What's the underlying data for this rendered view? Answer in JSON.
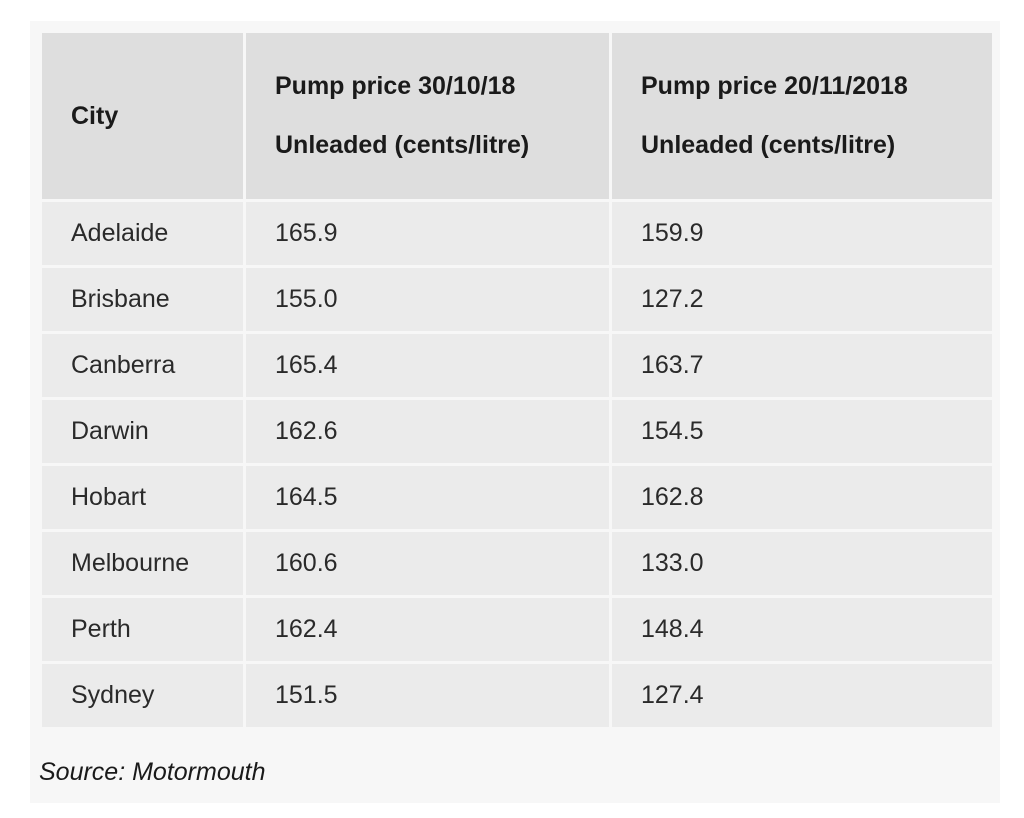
{
  "table": {
    "headers": [
      [
        "City"
      ],
      [
        "Pump price 30/10/18",
        "Unleaded (cents/litre)"
      ],
      [
        "Pump price 20/11/2018",
        "Unleaded (cents/litre)"
      ]
    ],
    "rows": [
      [
        "Adelaide",
        "165.9",
        "159.9"
      ],
      [
        "Brisbane",
        "155.0",
        "127.2"
      ],
      [
        "Canberra",
        "165.4",
        "163.7"
      ],
      [
        "Darwin",
        "162.6",
        "154.5"
      ],
      [
        "Hobart",
        "164.5",
        "162.8"
      ],
      [
        "Melbourne",
        "160.6",
        "133.0"
      ],
      [
        "Perth",
        "162.4",
        "148.4"
      ],
      [
        "Sydney",
        "151.5",
        "127.4"
      ]
    ]
  },
  "source": "Source: Motormouth",
  "colors": {
    "header_bg": "#dedede",
    "row_bg": "#ebebeb",
    "panel_bg": "#f7f7f7"
  }
}
